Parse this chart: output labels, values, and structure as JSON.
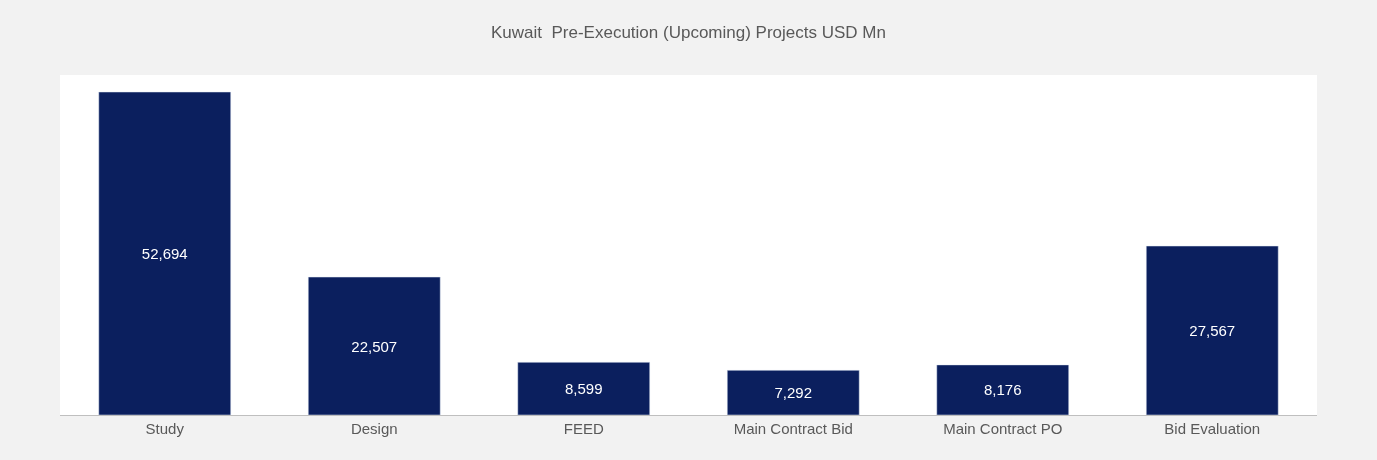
{
  "chart_data": {
    "type": "bar",
    "title": "Kuwait  Pre-Execution (Upcoming) Projects USD Mn",
    "categories": [
      "Study",
      "Design",
      "FEED",
      "Main Contract Bid",
      "Main Contract PO",
      "Bid Evaluation"
    ],
    "values": [
      52694,
      22507,
      8599,
      7292,
      8176,
      27567
    ],
    "value_labels": [
      "52,694",
      "22,507",
      "8,599",
      "7,292",
      "8,176",
      "27,567"
    ],
    "color": "#0b1f5e"
  }
}
